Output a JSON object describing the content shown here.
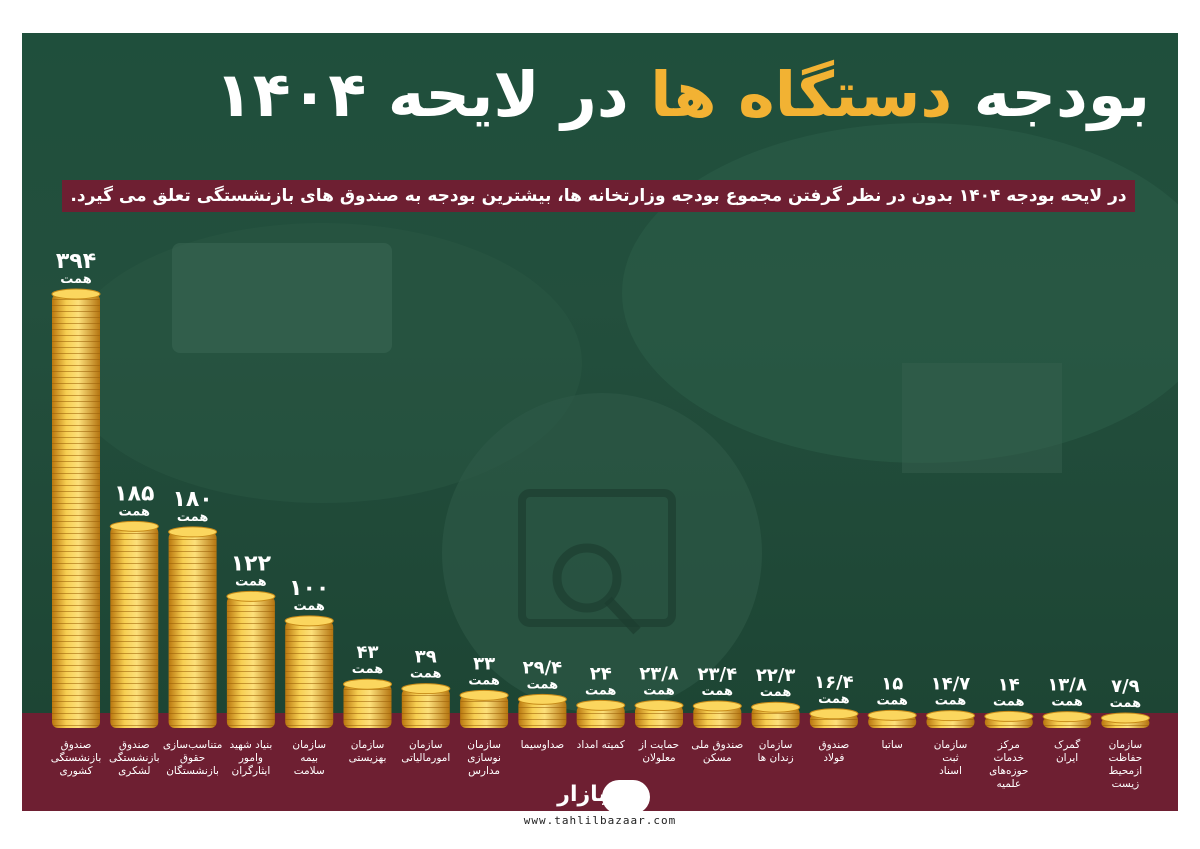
{
  "title_white": "بودجه",
  "title_yellow": "دستگاه ها",
  "title_white2": "در لایحه ۱۴۰۴",
  "subtitle": "در لایحه بودجه ۱۴۰۴ بدون در نظر گرفتن مجموع بودجه وزارتخانه ها، بیشترین بودجه به صندوق های بازنشستگی تعلق می گیرد.",
  "unit_label": "همت",
  "logo_text": "بازار",
  "website": "www.tahlilbazaar.com",
  "colors": {
    "background_green": "#234f3d",
    "maroon": "#6e1f32",
    "coin_gold": "#f2b233",
    "title_yellow": "#f2b233"
  },
  "chart_data": {
    "type": "bar",
    "unit": "همت",
    "ylim": [
      0,
      394
    ],
    "categories": [
      [
        "صندوق",
        "بازنشستگی",
        "کشوری"
      ],
      [
        "صندوق",
        "بازنشستگی",
        "لشکری"
      ],
      [
        "متناسب‌سازی",
        "حقوق",
        "بازنشستگان"
      ],
      [
        "بنیاد شهید",
        "وامور",
        "ایثارگران"
      ],
      [
        "سازمان",
        "بیمه",
        "سلامت"
      ],
      [
        "سازمان",
        "بهزیستی"
      ],
      [
        "سازمان",
        "امورمالیاتی"
      ],
      [
        "سازمان",
        "نوسازی",
        "مدارس"
      ],
      [
        "صداوسیما"
      ],
      [
        "کمیته امداد"
      ],
      [
        "حمایت از",
        "معلولان"
      ],
      [
        "صندوق ملی",
        "مسکن"
      ],
      [
        "سازمان",
        "زندان ها"
      ],
      [
        "صندوق",
        "فولاد"
      ],
      [
        "ساتبا"
      ],
      [
        "سازمان",
        "ثبت",
        "اسناد"
      ],
      [
        "مرکز",
        "خدمات",
        "حوزه‌های",
        "علمیه"
      ],
      [
        "گمرک",
        "ایران"
      ],
      [
        "سازمان",
        "حفاظت",
        "ازمحیط",
        "زیست"
      ]
    ],
    "values": [
      394,
      185,
      180,
      122,
      100,
      43,
      39,
      33,
      29.4,
      24,
      23.8,
      23.4,
      22.3,
      16.4,
      15,
      14.7,
      14,
      13.8,
      7.9
    ],
    "value_labels": [
      "۳۹۴",
      "۱۸۵",
      "۱۸۰",
      "۱۲۲",
      "۱۰۰",
      "۴۳",
      "۳۹",
      "۳۳",
      "۲۹/۴",
      "۲۴",
      "۲۳/۸",
      "۲۳/۴",
      "۲۲/۳",
      "۱۶/۴",
      "۱۵",
      "۱۴/۷",
      "۱۴",
      "۱۳/۸",
      "۷/۹"
    ]
  }
}
